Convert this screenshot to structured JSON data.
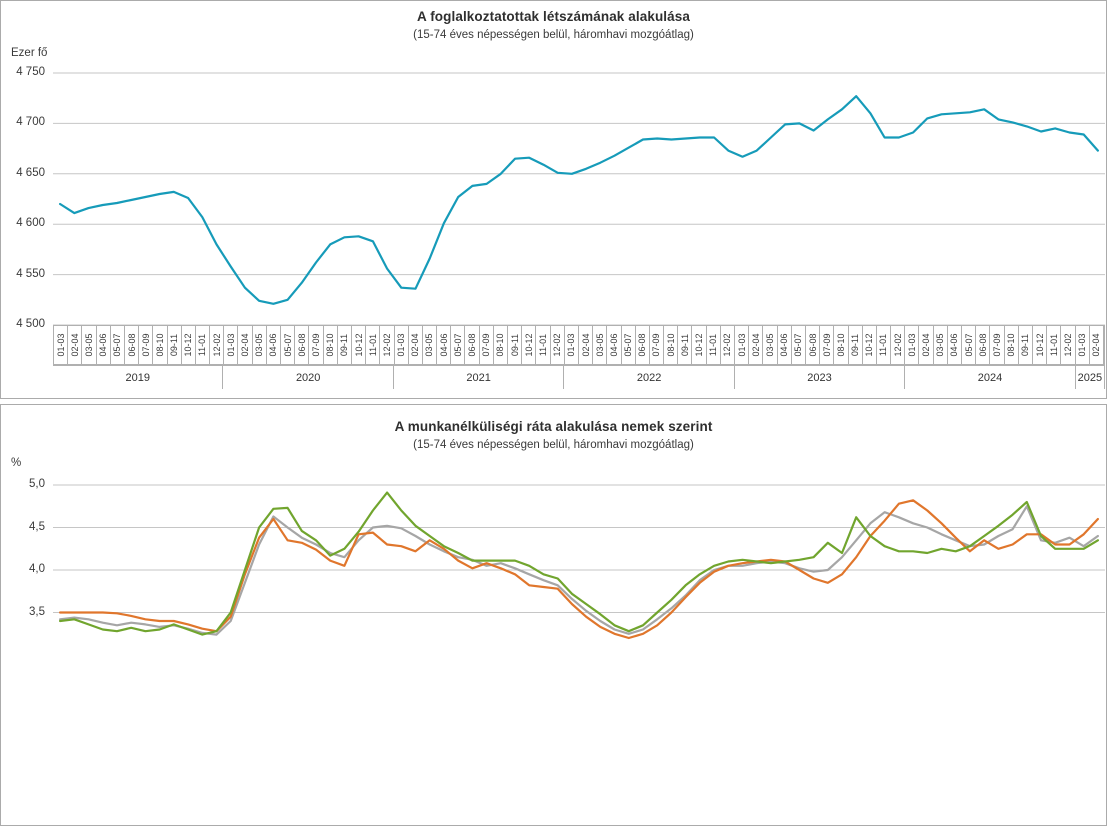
{
  "panels": [
    {
      "title": "A foglalkoztatottak létszámának alakulása",
      "subtitle": "(15-74 éves népességen belül, háromhavi mozgóátlag)",
      "unit": "Ezer fő"
    },
    {
      "title": "A munkanélküliségi ráta alakulása nemek szerint",
      "subtitle": "(15-74 éves népességen belül, háromhavi mozgóátlag)",
      "unit": "%"
    }
  ],
  "chart_data": [
    {
      "type": "line",
      "title": "A foglalkoztatottak létszámának alakulása",
      "subtitle": "(15-74 éves népességen belül, háromhavi mozgóátlag)",
      "ylabel": "Ezer fő",
      "ylim": [
        4500,
        4750
      ],
      "grid": "horizontal",
      "legend": "none",
      "yticks": {
        "labels": [
          "4 750",
          "4 700",
          "4 650",
          "4 600",
          "4 550",
          "4 500"
        ],
        "values": [
          4750,
          4700,
          4650,
          4600,
          4550,
          4500
        ]
      },
      "categories": [
        "01-03",
        "02-04",
        "03-05",
        "04-06",
        "05-07",
        "06-08",
        "07-09",
        "08-10",
        "09-11",
        "10-12",
        "11-01",
        "12-02",
        "01-03",
        "02-04",
        "03-05",
        "04-06",
        "05-07",
        "06-08",
        "07-09",
        "08-10",
        "09-11",
        "10-12",
        "11-01",
        "12-02",
        "01-03",
        "02-04",
        "03-05",
        "04-06",
        "05-07",
        "06-08",
        "07-09",
        "08-10",
        "09-11",
        "10-12",
        "11-01",
        "12-02",
        "01-03",
        "02-04",
        "03-05",
        "04-06",
        "05-07",
        "06-08",
        "07-09",
        "08-10",
        "09-11",
        "10-12",
        "11-01",
        "12-02",
        "01-03",
        "02-04",
        "03-05",
        "04-06",
        "05-07",
        "06-08",
        "07-09",
        "08-10",
        "09-11",
        "10-12",
        "11-01",
        "12-02",
        "01-03",
        "02-04",
        "03-05",
        "04-06",
        "05-07",
        "06-08",
        "07-09",
        "08-10",
        "09-11",
        "10-12",
        "11-01",
        "12-02",
        "01-03",
        "02-04"
      ],
      "year_groups": [
        {
          "label": "2019",
          "count": 12
        },
        {
          "label": "2020",
          "count": 12
        },
        {
          "label": "2021",
          "count": 12
        },
        {
          "label": "2022",
          "count": 12
        },
        {
          "label": "2023",
          "count": 12
        },
        {
          "label": "2024",
          "count": 12
        },
        {
          "label": "2025",
          "count": 2
        }
      ],
      "series": [
        {
          "name": "foglalkoztatottak",
          "color": "#169bb9",
          "values": [
            4620,
            4611,
            4616,
            4619,
            4621,
            4624,
            4627,
            4630,
            4632,
            4626,
            4607,
            4580,
            4558,
            4537,
            4524,
            4521,
            4525,
            4542,
            4562,
            4580,
            4587,
            4588,
            4583,
            4556,
            4537,
            4536,
            4566,
            4601,
            4627,
            4638,
            4640,
            4650,
            4665,
            4666,
            4659,
            4651,
            4650,
            4655,
            4661,
            4668,
            4676,
            4684,
            4685,
            4684,
            4685,
            4686,
            4686,
            4673,
            4667,
            4673,
            4686,
            4699,
            4700,
            4693,
            4704,
            4714,
            4727,
            4710,
            4686,
            4686,
            4691,
            4705,
            4709,
            4710,
            4711,
            4714,
            4704,
            4701,
            4697,
            4692,
            4695,
            4691,
            4689,
            4673
          ]
        }
      ]
    },
    {
      "type": "line",
      "title": "A munkanélküliségi ráta alakulása nemek szerint",
      "subtitle": "(15-74 éves népességen belül, háromhavi mozgóátlag)",
      "ylabel": "%",
      "ylim_visible": [
        3.3,
        5.0
      ],
      "grid": "horizontal",
      "legend": "none",
      "clipped_bottom": true,
      "x_count": 74,
      "yticks": {
        "labels": [
          "5,0",
          "4,5",
          "4,0",
          "3,5"
        ],
        "values": [
          5.0,
          4.5,
          4.0,
          3.5
        ]
      },
      "series": [
        {
          "name": "gray",
          "color": "#a6a6a6",
          "values": [
            3.42,
            3.44,
            3.42,
            3.38,
            3.35,
            3.38,
            3.36,
            3.33,
            3.35,
            3.31,
            3.26,
            3.24,
            3.4,
            3.85,
            4.3,
            4.63,
            4.5,
            4.38,
            4.3,
            4.2,
            4.15,
            4.35,
            4.5,
            4.52,
            4.49,
            4.4,
            4.3,
            4.22,
            4.15,
            4.12,
            4.05,
            4.08,
            4.02,
            3.95,
            3.88,
            3.82,
            3.66,
            3.52,
            3.4,
            3.3,
            3.25,
            3.3,
            3.42,
            3.55,
            3.7,
            3.88,
            4.0,
            4.05,
            4.05,
            4.08,
            4.1,
            4.08,
            4.02,
            3.98,
            4.0,
            4.15,
            4.35,
            4.55,
            4.68,
            4.62,
            4.55,
            4.5,
            4.42,
            4.35,
            4.28,
            4.3,
            4.4,
            4.48,
            4.75,
            4.35,
            4.32,
            4.38,
            4.28,
            4.4
          ]
        },
        {
          "name": "orange",
          "color": "#e0762c",
          "values": [
            3.5,
            3.5,
            3.5,
            3.5,
            3.49,
            3.46,
            3.42,
            3.4,
            3.4,
            3.36,
            3.31,
            3.28,
            3.45,
            3.95,
            4.38,
            4.6,
            4.35,
            4.32,
            4.24,
            4.11,
            4.05,
            4.42,
            4.44,
            4.3,
            4.28,
            4.22,
            4.35,
            4.25,
            4.11,
            4.02,
            4.08,
            4.02,
            3.95,
            3.82,
            3.8,
            3.78,
            3.6,
            3.45,
            3.33,
            3.25,
            3.2,
            3.25,
            3.35,
            3.5,
            3.68,
            3.85,
            3.98,
            4.05,
            4.08,
            4.1,
            4.12,
            4.1,
            4.0,
            3.9,
            3.85,
            3.95,
            4.15,
            4.4,
            4.58,
            4.78,
            4.82,
            4.7,
            4.55,
            4.38,
            4.22,
            4.35,
            4.25,
            4.3,
            4.42,
            4.42,
            4.3,
            4.3,
            4.42,
            4.6
          ]
        },
        {
          "name": "green",
          "color": "#71a52e",
          "values": [
            3.4,
            3.42,
            3.36,
            3.3,
            3.28,
            3.32,
            3.28,
            3.3,
            3.36,
            3.3,
            3.24,
            3.28,
            3.5,
            4.0,
            4.5,
            4.72,
            4.73,
            4.46,
            4.35,
            4.17,
            4.25,
            4.45,
            4.7,
            4.91,
            4.7,
            4.52,
            4.4,
            4.28,
            4.2,
            4.11,
            4.11,
            4.11,
            4.11,
            4.05,
            3.95,
            3.9,
            3.72,
            3.6,
            3.48,
            3.35,
            3.28,
            3.35,
            3.5,
            3.65,
            3.82,
            3.95,
            4.05,
            4.1,
            4.12,
            4.1,
            4.08,
            4.1,
            4.12,
            4.15,
            4.32,
            4.2,
            4.62,
            4.4,
            4.28,
            4.22,
            4.22,
            4.2,
            4.25,
            4.22,
            4.28,
            4.4,
            4.52,
            4.65,
            4.8,
            4.4,
            4.25,
            4.25,
            4.25,
            4.35
          ]
        }
      ]
    }
  ]
}
